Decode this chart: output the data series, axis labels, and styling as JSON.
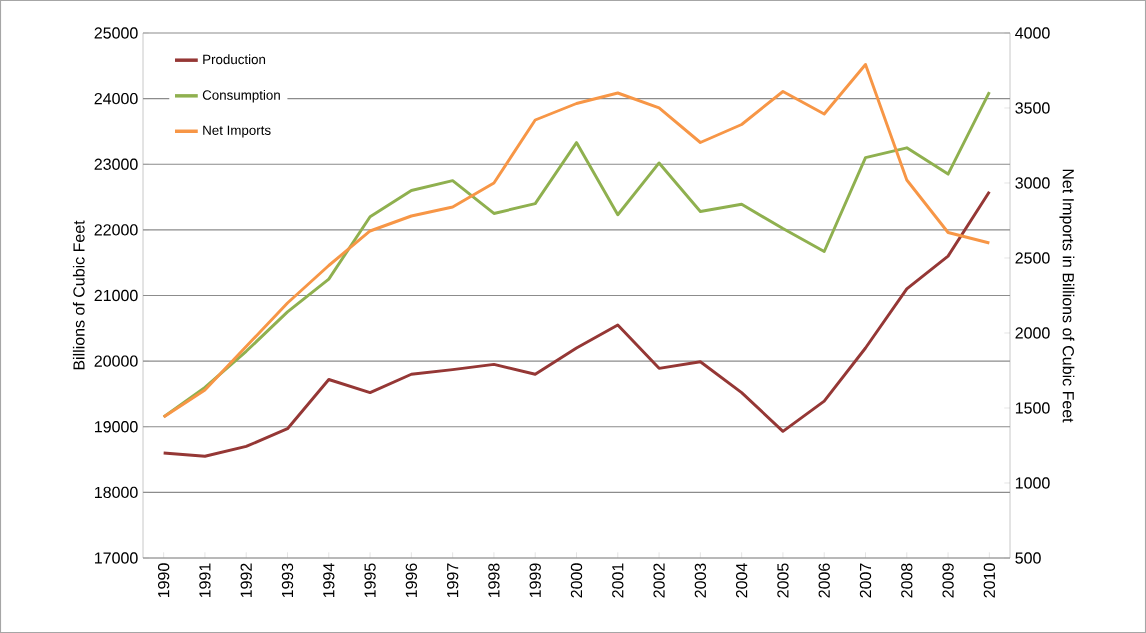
{
  "chart_data": {
    "type": "line",
    "categories": [
      "1990",
      "1991",
      "1992",
      "1993",
      "1994",
      "1995",
      "1996",
      "1997",
      "1998",
      "1999",
      "2000",
      "2001",
      "2002",
      "2003",
      "2004",
      "2005",
      "2006",
      "2007",
      "2008",
      "2009",
      "2010"
    ],
    "series": [
      {
        "name": "Production",
        "color": "#953735",
        "values": [
          18600,
          18550,
          18700,
          18970,
          19720,
          19520,
          19800,
          19870,
          19950,
          19800,
          20200,
          20550,
          19890,
          19990,
          19520,
          18930,
          19390,
          20200,
          21100,
          21600,
          22580
        ]
      },
      {
        "name": "Consumption",
        "color": "#8fb04f",
        "values": [
          19150,
          19600,
          20150,
          20750,
          21250,
          22200,
          22600,
          22750,
          22250,
          22400,
          23330,
          22230,
          23020,
          22280,
          22390,
          22020,
          21670,
          23100,
          23250,
          22850,
          24100
        ]
      },
      {
        "name": "Net Imports",
        "color": "#f79646",
        "axis": "y2",
        "values": [
          1440,
          1620,
          1910,
          2200,
          2450,
          2680,
          2780,
          2840,
          3000,
          3420,
          3530,
          3600,
          3500,
          3270,
          3390,
          3610,
          3460,
          3790,
          3020,
          2670,
          2600
        ]
      }
    ],
    "ylabel": "Billions of Cubic Feet",
    "y2label": "Net Imports in Billions of Cubic Feet",
    "ylim": [
      17000,
      25000
    ],
    "yticks": [
      17000,
      18000,
      19000,
      20000,
      21000,
      22000,
      23000,
      24000,
      25000
    ],
    "y2lim": [
      500,
      4000
    ],
    "y2ticks": [
      500,
      1000,
      1500,
      2000,
      2500,
      3000,
      3500,
      4000
    ],
    "grid": "y",
    "legend": "top left",
    "marker": "none",
    "line_style": "solid"
  }
}
